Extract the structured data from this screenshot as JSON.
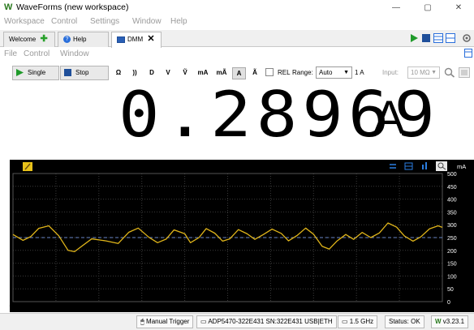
{
  "window": {
    "logo": "W",
    "title": "WaveForms (new workspace)",
    "minimize": "—",
    "maximize": "▢",
    "close": "✕"
  },
  "menubar": [
    "Workspace",
    "Control",
    "Settings",
    "Window",
    "Help"
  ],
  "tabs": {
    "welcome": "Welcome",
    "help": "Help",
    "dmm": "DMM",
    "dmm_close": "✕"
  },
  "submenu": [
    "File",
    "Control",
    "Window"
  ],
  "toolbar": {
    "single": "Single",
    "stop": "Stop",
    "modes": [
      "Ω",
      "))",
      "D",
      "V",
      "Ṽ",
      "mA",
      "mÃ",
      "A",
      "Ã"
    ],
    "selected_mode": "A",
    "rel_label": "REL",
    "range_label": "Range:",
    "range_value": "Auto",
    "range_unit": "1 A",
    "input_label": "Input:",
    "input_value": "10 MΩ"
  },
  "readout": {
    "value": "0.28969",
    "unit": "A"
  },
  "plot": {
    "y_unit": "mA"
  },
  "chart_data": {
    "type": "line",
    "ylabel": "mA",
    "xlabel": "",
    "ylim": [
      0,
      500
    ],
    "xlim": [
      60,
      0
    ],
    "x_ticks": [
      "60",
      "54",
      "48",
      "42",
      "36",
      "30",
      "24",
      "18",
      "12",
      "6",
      "0"
    ],
    "y_ticks": [
      "500",
      "450",
      "400",
      "350",
      "300",
      "250",
      "200",
      "150",
      "100",
      "50",
      "0"
    ],
    "reference_line": 250,
    "series": [
      {
        "color": "#e0b51a",
        "x": [
          60,
          58.6,
          57.5,
          56.4,
          55,
          53.6,
          52.3,
          51.4,
          50.5,
          49,
          47,
          45.3,
          43.8,
          42.5,
          41,
          39.8,
          38.6,
          37.5,
          36,
          35.2,
          34,
          33,
          31.8,
          30.7,
          29.7,
          28.5,
          27.3,
          26.2,
          25,
          23.8,
          22.5,
          21.5,
          20.3,
          19.1,
          18,
          16.8,
          15.8,
          14.7,
          13.5,
          12.4,
          11.2,
          10,
          8.8,
          7.6,
          6.4,
          5.3,
          4.1,
          3,
          1.8,
          0.6,
          0
        ],
        "values": [
          262,
          239,
          254,
          286,
          296,
          257,
          200,
          195,
          214,
          245,
          237,
          227,
          271,
          287,
          251,
          230,
          244,
          280,
          265,
          230,
          250,
          285,
          267,
          236,
          245,
          281,
          265,
          243,
          262,
          283,
          266,
          237,
          258,
          287,
          263,
          216,
          205,
          237,
          262,
          243,
          270,
          250,
          268,
          307,
          291,
          256,
          236,
          253,
          284,
          296,
          290
        ]
      }
    ]
  },
  "statusbar": {
    "trigger": "Manual Trigger",
    "device": "ADP5470-322E431 SN:322E431 USB|ETH",
    "clock": "1.5 GHz",
    "status": "Status: OK",
    "version": "v3.23.1"
  }
}
